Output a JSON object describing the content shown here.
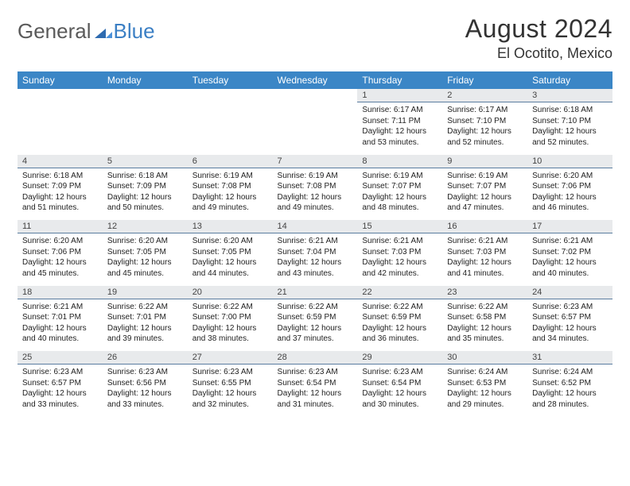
{
  "logo": {
    "part1": "General",
    "part2": "Blue"
  },
  "title": "August 2024",
  "location": "El Ocotito, Mexico",
  "weekdays": [
    "Sunday",
    "Monday",
    "Tuesday",
    "Wednesday",
    "Thursday",
    "Friday",
    "Saturday"
  ],
  "colors": {
    "header_bg": "#3b86c6",
    "header_text": "#ffffff",
    "daynum_bg": "#e8eaec",
    "daynum_border": "#5a7da0",
    "text": "#222222",
    "logo_gray": "#5a5a5a",
    "logo_blue": "#3b7fc4"
  },
  "weeks": [
    [
      null,
      null,
      null,
      null,
      {
        "n": "1",
        "sr": "6:17 AM",
        "ss": "7:11 PM",
        "dh": "12",
        "dm": "53"
      },
      {
        "n": "2",
        "sr": "6:17 AM",
        "ss": "7:10 PM",
        "dh": "12",
        "dm": "52"
      },
      {
        "n": "3",
        "sr": "6:18 AM",
        "ss": "7:10 PM",
        "dh": "12",
        "dm": "52"
      }
    ],
    [
      {
        "n": "4",
        "sr": "6:18 AM",
        "ss": "7:09 PM",
        "dh": "12",
        "dm": "51"
      },
      {
        "n": "5",
        "sr": "6:18 AM",
        "ss": "7:09 PM",
        "dh": "12",
        "dm": "50"
      },
      {
        "n": "6",
        "sr": "6:19 AM",
        "ss": "7:08 PM",
        "dh": "12",
        "dm": "49"
      },
      {
        "n": "7",
        "sr": "6:19 AM",
        "ss": "7:08 PM",
        "dh": "12",
        "dm": "49"
      },
      {
        "n": "8",
        "sr": "6:19 AM",
        "ss": "7:07 PM",
        "dh": "12",
        "dm": "48"
      },
      {
        "n": "9",
        "sr": "6:19 AM",
        "ss": "7:07 PM",
        "dh": "12",
        "dm": "47"
      },
      {
        "n": "10",
        "sr": "6:20 AM",
        "ss": "7:06 PM",
        "dh": "12",
        "dm": "46"
      }
    ],
    [
      {
        "n": "11",
        "sr": "6:20 AM",
        "ss": "7:06 PM",
        "dh": "12",
        "dm": "45"
      },
      {
        "n": "12",
        "sr": "6:20 AM",
        "ss": "7:05 PM",
        "dh": "12",
        "dm": "45"
      },
      {
        "n": "13",
        "sr": "6:20 AM",
        "ss": "7:05 PM",
        "dh": "12",
        "dm": "44"
      },
      {
        "n": "14",
        "sr": "6:21 AM",
        "ss": "7:04 PM",
        "dh": "12",
        "dm": "43"
      },
      {
        "n": "15",
        "sr": "6:21 AM",
        "ss": "7:03 PM",
        "dh": "12",
        "dm": "42"
      },
      {
        "n": "16",
        "sr": "6:21 AM",
        "ss": "7:03 PM",
        "dh": "12",
        "dm": "41"
      },
      {
        "n": "17",
        "sr": "6:21 AM",
        "ss": "7:02 PM",
        "dh": "12",
        "dm": "40"
      }
    ],
    [
      {
        "n": "18",
        "sr": "6:21 AM",
        "ss": "7:01 PM",
        "dh": "12",
        "dm": "40"
      },
      {
        "n": "19",
        "sr": "6:22 AM",
        "ss": "7:01 PM",
        "dh": "12",
        "dm": "39"
      },
      {
        "n": "20",
        "sr": "6:22 AM",
        "ss": "7:00 PM",
        "dh": "12",
        "dm": "38"
      },
      {
        "n": "21",
        "sr": "6:22 AM",
        "ss": "6:59 PM",
        "dh": "12",
        "dm": "37"
      },
      {
        "n": "22",
        "sr": "6:22 AM",
        "ss": "6:59 PM",
        "dh": "12",
        "dm": "36"
      },
      {
        "n": "23",
        "sr": "6:22 AM",
        "ss": "6:58 PM",
        "dh": "12",
        "dm": "35"
      },
      {
        "n": "24",
        "sr": "6:23 AM",
        "ss": "6:57 PM",
        "dh": "12",
        "dm": "34"
      }
    ],
    [
      {
        "n": "25",
        "sr": "6:23 AM",
        "ss": "6:57 PM",
        "dh": "12",
        "dm": "33"
      },
      {
        "n": "26",
        "sr": "6:23 AM",
        "ss": "6:56 PM",
        "dh": "12",
        "dm": "33"
      },
      {
        "n": "27",
        "sr": "6:23 AM",
        "ss": "6:55 PM",
        "dh": "12",
        "dm": "32"
      },
      {
        "n": "28",
        "sr": "6:23 AM",
        "ss": "6:54 PM",
        "dh": "12",
        "dm": "31"
      },
      {
        "n": "29",
        "sr": "6:23 AM",
        "ss": "6:54 PM",
        "dh": "12",
        "dm": "30"
      },
      {
        "n": "30",
        "sr": "6:24 AM",
        "ss": "6:53 PM",
        "dh": "12",
        "dm": "29"
      },
      {
        "n": "31",
        "sr": "6:24 AM",
        "ss": "6:52 PM",
        "dh": "12",
        "dm": "28"
      }
    ]
  ],
  "labels": {
    "sunrise": "Sunrise:",
    "sunset": "Sunset:",
    "daylight": "Daylight:",
    "hours": "hours",
    "and": "and",
    "minutes": "minutes."
  }
}
